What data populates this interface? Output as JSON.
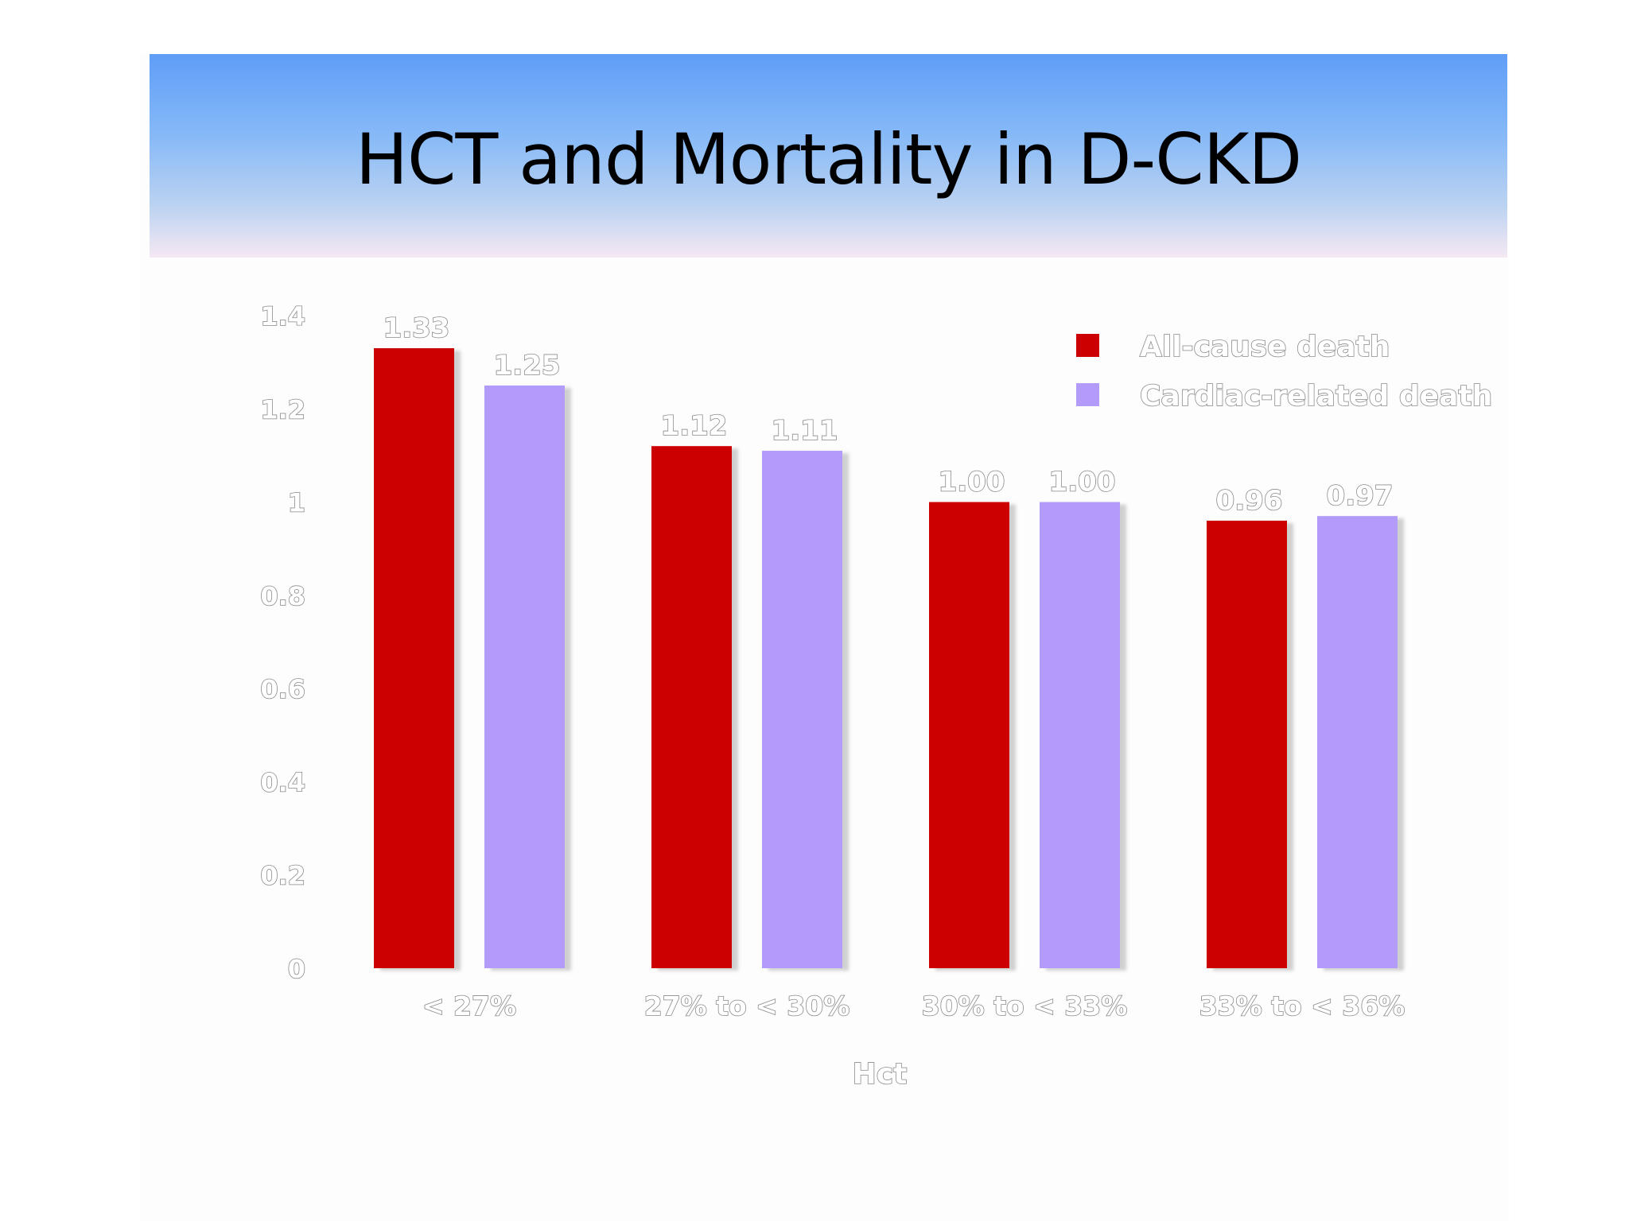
{
  "slide": {
    "title": "HCT and Mortality in D-CKD"
  },
  "colors": {
    "all_cause": "#cc0000",
    "cardiac": "#b39bfb",
    "title_gradient_top": "#5f9df7",
    "title_gradient_bottom": "#f5e8f3"
  },
  "chart_data": {
    "type": "bar",
    "xlabel": "Hct",
    "ylabel": "",
    "ylim": [
      0,
      1.4
    ],
    "yticks": [
      "0",
      "0.2",
      "0.4",
      "0.6",
      "0.8",
      "1",
      "1.2",
      "1.4"
    ],
    "categories": [
      "< 27%",
      "27% to < 30%",
      "30% to < 33%",
      "33% to < 36%"
    ],
    "series": [
      {
        "name": "All-cause death",
        "values": [
          1.33,
          1.12,
          1.0,
          0.96
        ],
        "labels": [
          "1.33",
          "1.12",
          "1.00",
          "0.96"
        ]
      },
      {
        "name": "Cardiac-related death",
        "values": [
          1.25,
          1.11,
          1.0,
          0.97
        ],
        "labels": [
          "1.25",
          "1.11",
          "1.00",
          "0.97"
        ]
      }
    ],
    "legend": "top-right",
    "grid": false
  }
}
